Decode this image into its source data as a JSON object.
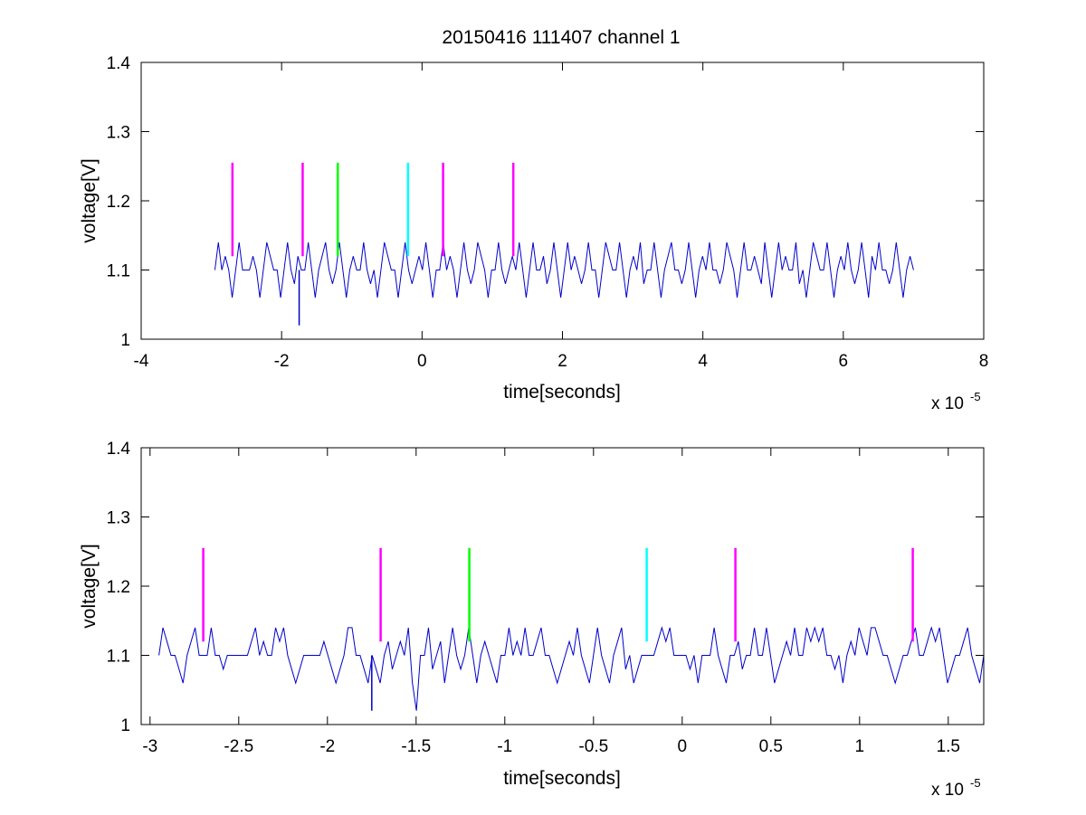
{
  "figure": {
    "title": "20150416 111407 channel 1",
    "background": "#ffffff"
  },
  "chart_data": [
    {
      "type": "line",
      "title": "20150416 111407 channel 1",
      "xlabel": "time[seconds]",
      "ylabel": "voltage[V]",
      "x_multiplier_base": "x 10",
      "x_multiplier_exponent": "-5",
      "xlim": [
        -4,
        8
      ],
      "ylim": [
        1,
        1.4
      ],
      "xticks": [
        -4,
        -2,
        0,
        2,
        4,
        6,
        8
      ],
      "xtick_labels": [
        "-4",
        "-2",
        "0",
        "2",
        "4",
        "6",
        "8"
      ],
      "yticks": [
        1,
        1.1,
        1.2,
        1.3,
        1.4
      ],
      "ytick_labels": [
        "1",
        "1.1",
        "1.2",
        "1.3",
        "1.4"
      ],
      "grid": false,
      "legend": "none",
      "series": [
        {
          "color": "#0000cc",
          "x_range": [
            -2.95,
            7.0
          ],
          "levels": [
            1.06,
            1.08,
            1.1,
            1.12,
            1.14
          ],
          "baseline": 1.1,
          "min_spike": {
            "x": -1.75,
            "y": 1.02
          },
          "values": [
            1.1,
            1.14,
            1.1,
            1.12,
            1.1,
            1.06,
            1.1,
            1.14,
            1.1,
            1.1,
            1.1,
            1.12,
            1.1,
            1.06,
            1.1,
            1.14,
            1.12,
            1.1,
            1.1,
            1.06,
            1.1,
            1.14,
            1.1,
            1.08,
            1.12,
            1.1,
            1.1,
            1.14,
            1.1,
            1.06,
            1.1,
            1.12,
            1.14,
            1.1,
            1.08,
            1.1,
            1.14,
            1.1,
            1.06,
            1.1,
            1.12,
            1.1,
            1.1,
            1.14,
            1.1,
            1.08,
            1.1,
            1.06,
            1.1,
            1.14,
            1.12,
            1.1,
            1.1,
            1.06,
            1.1,
            1.14,
            1.1,
            1.08,
            1.1,
            1.12,
            1.1,
            1.14,
            1.1,
            1.06,
            1.1,
            1.1,
            1.14,
            1.1,
            1.12,
            1.1,
            1.06,
            1.1,
            1.14,
            1.1,
            1.08,
            1.1,
            1.14,
            1.12,
            1.1,
            1.06,
            1.1,
            1.1,
            1.14,
            1.1,
            1.08,
            1.1,
            1.12,
            1.1,
            1.14,
            1.1,
            1.06,
            1.1,
            1.14,
            1.1,
            1.1,
            1.12,
            1.08,
            1.1,
            1.14,
            1.1,
            1.06,
            1.1,
            1.14,
            1.1,
            1.12,
            1.1,
            1.08,
            1.1,
            1.14,
            1.1,
            1.1,
            1.06,
            1.1,
            1.14,
            1.12,
            1.1,
            1.1,
            1.14,
            1.1,
            1.06,
            1.1,
            1.12,
            1.1,
            1.14,
            1.08,
            1.1,
            1.1,
            1.14,
            1.1,
            1.06,
            1.1,
            1.12,
            1.14,
            1.1,
            1.1,
            1.08,
            1.1,
            1.14,
            1.1,
            1.06,
            1.1,
            1.12,
            1.1,
            1.14,
            1.1,
            1.1,
            1.08,
            1.1,
            1.14,
            1.12,
            1.1,
            1.06,
            1.1,
            1.14,
            1.1,
            1.1,
            1.12,
            1.1,
            1.08,
            1.14,
            1.1,
            1.06,
            1.1,
            1.14,
            1.1,
            1.12,
            1.1,
            1.1,
            1.14,
            1.08,
            1.1,
            1.06,
            1.1,
            1.14,
            1.12,
            1.1,
            1.1,
            1.14,
            1.1,
            1.06,
            1.1,
            1.12,
            1.1,
            1.14,
            1.1,
            1.08,
            1.1,
            1.14,
            1.1,
            1.06,
            1.12,
            1.1,
            1.14,
            1.1,
            1.1,
            1.08,
            1.1,
            1.14,
            1.1,
            1.06,
            1.1,
            1.12,
            1.1
          ]
        }
      ],
      "markers": [
        {
          "x": -2.7,
          "y_range": [
            1.12,
            1.255
          ],
          "color": "#ff00ff"
        },
        {
          "x": -1.7,
          "y_range": [
            1.12,
            1.255
          ],
          "color": "#ff00ff"
        },
        {
          "x": -1.2,
          "y_range": [
            1.12,
            1.255
          ],
          "color": "#00ff00"
        },
        {
          "x": -0.2,
          "y_range": [
            1.12,
            1.255
          ],
          "color": "#00ffff"
        },
        {
          "x": 0.3,
          "y_range": [
            1.12,
            1.255
          ],
          "color": "#ff00ff"
        },
        {
          "x": 1.3,
          "y_range": [
            1.12,
            1.255
          ],
          "color": "#ff00ff"
        }
      ]
    },
    {
      "type": "line",
      "title": "",
      "xlabel": "time[seconds]",
      "ylabel": "voltage[V]",
      "x_multiplier_base": "x 10",
      "x_multiplier_exponent": "-5",
      "xlim": [
        -3.05,
        1.7
      ],
      "ylim": [
        1,
        1.4
      ],
      "xticks": [
        -3,
        -2.5,
        -2,
        -1.5,
        -1,
        -0.5,
        0,
        0.5,
        1,
        1.5
      ],
      "xtick_labels": [
        "-3",
        "-2.5",
        "-2",
        "-1.5",
        "-1",
        "-0.5",
        "0",
        "0.5",
        "1",
        "1.5"
      ],
      "yticks": [
        1,
        1.1,
        1.2,
        1.3,
        1.4
      ],
      "ytick_labels": [
        "1",
        "1.1",
        "1.2",
        "1.3",
        "1.4"
      ],
      "grid": false,
      "legend": "none",
      "series": [
        {
          "color": "#0000cc",
          "x_range": [
            -2.95,
            1.7
          ],
          "levels": [
            1.06,
            1.08,
            1.1,
            1.12,
            1.14
          ],
          "baseline": 1.1,
          "min_spike": {
            "x": -1.75,
            "y": 1.02
          },
          "values": [
            1.1,
            1.14,
            1.12,
            1.1,
            1.1,
            1.08,
            1.06,
            1.1,
            1.12,
            1.14,
            1.1,
            1.1,
            1.1,
            1.14,
            1.1,
            1.1,
            1.08,
            1.1,
            1.1,
            1.1,
            1.1,
            1.1,
            1.1,
            1.12,
            1.14,
            1.1,
            1.12,
            1.1,
            1.1,
            1.14,
            1.12,
            1.14,
            1.1,
            1.08,
            1.06,
            1.08,
            1.1,
            1.1,
            1.1,
            1.1,
            1.1,
            1.12,
            1.1,
            1.08,
            1.06,
            1.08,
            1.1,
            1.14,
            1.14,
            1.1,
            1.1,
            1.08,
            1.06,
            1.1,
            1.08,
            1.06,
            1.1,
            1.12,
            1.08,
            1.1,
            1.12,
            1.1,
            1.14,
            1.06,
            1.02,
            1.1,
            1.1,
            1.14,
            1.08,
            1.1,
            1.12,
            1.06,
            1.1,
            1.14,
            1.1,
            1.08,
            1.1,
            1.14,
            1.1,
            1.06,
            1.1,
            1.12,
            1.1,
            1.08,
            1.06,
            1.1,
            1.1,
            1.14,
            1.1,
            1.12,
            1.1,
            1.14,
            1.1,
            1.1,
            1.12,
            1.14,
            1.1,
            1.1,
            1.08,
            1.06,
            1.08,
            1.1,
            1.12,
            1.1,
            1.14,
            1.1,
            1.08,
            1.06,
            1.1,
            1.14,
            1.1,
            1.08,
            1.06,
            1.1,
            1.12,
            1.14,
            1.08,
            1.1,
            1.06,
            1.08,
            1.1,
            1.1,
            1.1,
            1.1,
            1.12,
            1.14,
            1.12,
            1.14,
            1.1,
            1.1,
            1.1,
            1.1,
            1.08,
            1.1,
            1.06,
            1.1,
            1.1,
            1.1,
            1.14,
            1.1,
            1.08,
            1.06,
            1.1,
            1.1,
            1.12,
            1.08,
            1.1,
            1.1,
            1.14,
            1.1,
            1.1,
            1.14,
            1.1,
            1.06,
            1.08,
            1.1,
            1.12,
            1.1,
            1.14,
            1.1,
            1.1,
            1.14,
            1.12,
            1.14,
            1.12,
            1.14,
            1.1,
            1.1,
            1.08,
            1.1,
            1.06,
            1.1,
            1.12,
            1.1,
            1.14,
            1.12,
            1.1,
            1.14,
            1.14,
            1.12,
            1.1,
            1.1,
            1.08,
            1.06,
            1.08,
            1.1,
            1.1,
            1.12,
            1.14,
            1.1,
            1.1,
            1.12,
            1.14,
            1.12,
            1.14,
            1.1,
            1.06,
            1.08,
            1.1,
            1.1,
            1.12,
            1.14,
            1.1,
            1.08,
            1.06,
            1.1
          ]
        }
      ],
      "markers": [
        {
          "x": -2.7,
          "y_range": [
            1.12,
            1.255
          ],
          "color": "#ff00ff"
        },
        {
          "x": -1.7,
          "y_range": [
            1.12,
            1.255
          ],
          "color": "#ff00ff"
        },
        {
          "x": -1.2,
          "y_range": [
            1.12,
            1.255
          ],
          "color": "#00ff00"
        },
        {
          "x": -0.2,
          "y_range": [
            1.12,
            1.255
          ],
          "color": "#00ffff"
        },
        {
          "x": 0.3,
          "y_range": [
            1.12,
            1.255
          ],
          "color": "#ff00ff"
        },
        {
          "x": 1.3,
          "y_range": [
            1.12,
            1.255
          ],
          "color": "#ff00ff"
        }
      ]
    }
  ]
}
